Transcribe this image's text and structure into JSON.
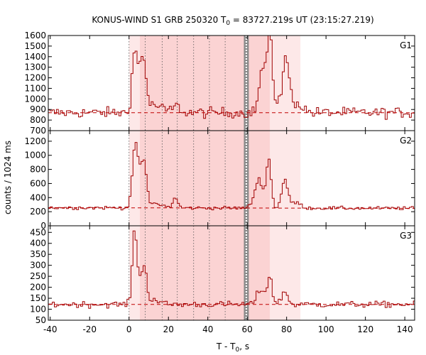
{
  "chart_data": {
    "type": "line",
    "title": "KONUS-WIND S1 GRB 250320 T",
    "title_sub": "0",
    "title_rest": " = 83727.219s UT (23:15:27.219)",
    "xlabel": "T - T",
    "xlabel_sub": "0",
    "xlabel_rest": ", s",
    "ylabel": "counts / 1024 ms",
    "xlim": [
      -41,
      145
    ],
    "xticks": [
      -40,
      -20,
      0,
      20,
      40,
      60,
      80,
      100,
      120,
      140
    ],
    "xtick_labels": [
      "-40",
      "-20",
      "0",
      "20",
      "40",
      "60",
      "80",
      "100",
      "120",
      "140"
    ],
    "shaded_intervals": {
      "light": [
        0,
        87
      ],
      "medium": [
        5.5,
        71.5
      ],
      "accent": [
        58.3,
        60.8
      ]
    },
    "dotted_lines_x": [
      0,
      8.2,
      16.8,
      24.5,
      32.8,
      40.8,
      48.8
    ],
    "bin_width_s": 1.024,
    "panels": [
      {
        "name": "G1",
        "ylim": [
          700,
          1600
        ],
        "yticks": [
          700,
          800,
          900,
          1000,
          1100,
          1200,
          1300,
          1400,
          1500,
          1600
        ],
        "ytick_labels": [
          "700",
          "800",
          "900",
          "1000",
          "1100",
          "1200",
          "1300",
          "1400",
          "1500",
          "1600"
        ],
        "background": 870,
        "noise": 25,
        "base_slope": 0,
        "pulses": [
          {
            "t": 2.8,
            "a": 560,
            "w": 1.3
          },
          {
            "t": 6.3,
            "a": 450,
            "w": 1.5
          },
          {
            "t": 8.2,
            "a": 200,
            "w": 1.0
          },
          {
            "t": 12.5,
            "a": 70,
            "w": 4.0
          },
          {
            "t": 24.0,
            "a": 60,
            "w": 2.0
          },
          {
            "t": 68.0,
            "a": 410,
            "w": 1.8
          },
          {
            "t": 71.5,
            "a": 640,
            "w": 1.1
          },
          {
            "t": 79.8,
            "a": 450,
            "w": 1.5
          },
          {
            "t": 74.5,
            "a": 120,
            "w": 4.0
          },
          {
            "t": 85.0,
            "a": 90,
            "w": 3.0
          }
        ]
      },
      {
        "name": "G2",
        "ylim": [
          0,
          1350
        ],
        "yticks": [
          0,
          200,
          400,
          600,
          800,
          1000,
          1200
        ],
        "ytick_labels": [
          "0",
          "200",
          "400",
          "600",
          "800",
          "1000",
          "1200"
        ],
        "background": 255,
        "noise": 12,
        "base_slope": -0.05,
        "pulses": [
          {
            "t": 3.0,
            "a": 820,
            "w": 1.4
          },
          {
            "t": 6.5,
            "a": 560,
            "w": 1.6
          },
          {
            "t": 8.3,
            "a": 230,
            "w": 1.0
          },
          {
            "t": 13.0,
            "a": 60,
            "w": 4.0
          },
          {
            "t": 23.5,
            "a": 140,
            "w": 1.2
          },
          {
            "t": 66.0,
            "a": 400,
            "w": 2.2
          },
          {
            "t": 71.0,
            "a": 660,
            "w": 1.2
          },
          {
            "t": 79.0,
            "a": 400,
            "w": 1.5
          },
          {
            "t": 84.5,
            "a": 80,
            "w": 2.5
          }
        ]
      },
      {
        "name": "G3",
        "ylim": [
          50,
          480
        ],
        "yticks": [
          50,
          100,
          150,
          200,
          250,
          300,
          350,
          400,
          450
        ],
        "ytick_labels": [
          "50",
          "100",
          "150",
          "200",
          "250",
          "300",
          "350",
          "400",
          "450"
        ],
        "background": 122,
        "noise": 7,
        "base_slope": 0,
        "pulses": [
          {
            "t": 2.9,
            "a": 330,
            "w": 1.2
          },
          {
            "t": 6.5,
            "a": 120,
            "w": 1.6
          },
          {
            "t": 8.2,
            "a": 80,
            "w": 1.0
          },
          {
            "t": 12.0,
            "a": 25,
            "w": 3.0
          },
          {
            "t": 67.0,
            "a": 70,
            "w": 2.0
          },
          {
            "t": 71.5,
            "a": 125,
            "w": 1.2
          },
          {
            "t": 79.0,
            "a": 60,
            "w": 1.5
          }
        ]
      }
    ]
  }
}
